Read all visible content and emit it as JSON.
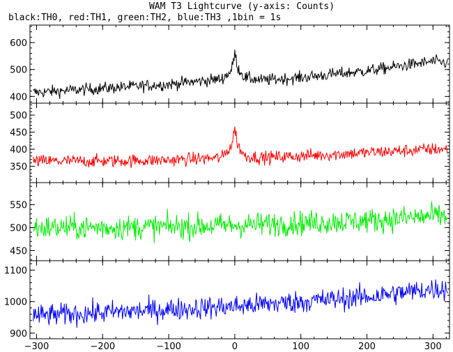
{
  "chart_data": {
    "type": "line",
    "title": "WAM T3 Lightcurve (y-axis: Counts)",
    "subtitle": "black:TH0, red:TH1, green:TH2, blue:TH3 ,1bin = 1s",
    "xlabel": "",
    "ylabel": "",
    "xlim": [
      -310,
      325
    ],
    "x_ticks": [
      -300,
      -200,
      -100,
      0,
      100,
      200,
      300
    ],
    "grid": false,
    "panels": [
      {
        "name": "TH0",
        "color": "#000000",
        "ylim": [
          375,
          665
        ],
        "y_ticks": [
          400,
          500,
          600
        ],
        "trend": {
          "x": [
            -300,
            -200,
            -100,
            -20,
            -5,
            0,
            5,
            15,
            40,
            100,
            200,
            300,
            320
          ],
          "y": [
            415,
            430,
            445,
            465,
            495,
            560,
            505,
            470,
            460,
            470,
            495,
            530,
            525
          ]
        },
        "noise_amplitude": 20
      },
      {
        "name": "TH1",
        "color": "#ff0000",
        "ylim": [
          302,
          535
        ],
        "y_ticks": [
          350,
          400,
          450,
          500
        ],
        "trend": {
          "x": [
            -300,
            -200,
            -100,
            -20,
            -5,
            0,
            5,
            15,
            40,
            100,
            200,
            300,
            320
          ],
          "y": [
            365,
            365,
            368,
            375,
            410,
            460,
            410,
            380,
            375,
            380,
            390,
            400,
            400
          ]
        },
        "noise_amplitude": 17
      },
      {
        "name": "TH2",
        "color": "#00ee00",
        "ylim": [
          428,
          598
        ],
        "y_ticks": [
          450,
          500,
          550
        ],
        "trend": {
          "x": [
            -300,
            -200,
            -100,
            0,
            100,
            200,
            300,
            320
          ],
          "y": [
            500,
            500,
            502,
            505,
            510,
            515,
            525,
            525
          ]
        },
        "noise_amplitude": 24
      },
      {
        "name": "TH3",
        "color": "#0000ff",
        "ylim": [
          882,
          1130
        ],
        "y_ticks": [
          900,
          1000,
          1100
        ],
        "trend": {
          "x": [
            -300,
            -200,
            -100,
            0,
            100,
            200,
            300,
            320
          ],
          "y": [
            955,
            965,
            975,
            985,
            1000,
            1015,
            1040,
            1040
          ]
        },
        "noise_amplitude": 32
      }
    ]
  }
}
